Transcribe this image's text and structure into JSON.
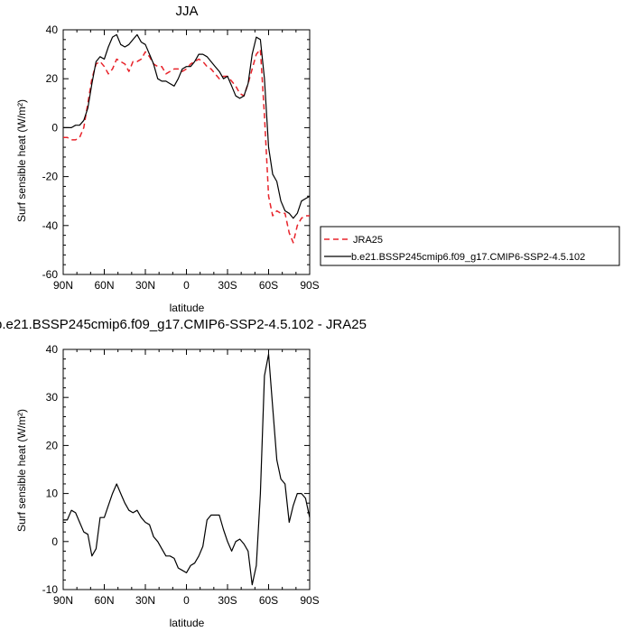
{
  "chart_data": [
    {
      "type": "line",
      "title": "JJA",
      "xlabel": "latitude",
      "ylabel": "Surf sensible heat (W/m²)",
      "xlim": [
        90,
        -90
      ],
      "ylim": [
        -60,
        40
      ],
      "xticks": [
        {
          "value": 90,
          "label": "90N"
        },
        {
          "value": 60,
          "label": "60N"
        },
        {
          "value": 30,
          "label": "30N"
        },
        {
          "value": 0,
          "label": "0"
        },
        {
          "value": -30,
          "label": "30S"
        },
        {
          "value": -60,
          "label": "60S"
        },
        {
          "value": -90,
          "label": "90S"
        }
      ],
      "yticks": [
        {
          "value": 40,
          "label": "40"
        },
        {
          "value": 20,
          "label": "20"
        },
        {
          "value": 0,
          "label": "0"
        },
        {
          "value": -20,
          "label": "-20"
        },
        {
          "value": -40,
          "label": "-40"
        },
        {
          "value": -60,
          "label": "-60"
        }
      ],
      "grid": false,
      "legend_position": "right",
      "series": [
        {
          "name": "JRA25",
          "color": "#e8232a",
          "dash": "dashed",
          "x": [
            90,
            87,
            84,
            81,
            78,
            75,
            72,
            69,
            66,
            63,
            60,
            57,
            54,
            51,
            48,
            45,
            42,
            39,
            36,
            33,
            30,
            27,
            24,
            21,
            18,
            15,
            12,
            9,
            6,
            3,
            0,
            -3,
            -6,
            -9,
            -12,
            -15,
            -18,
            -21,
            -24,
            -27,
            -30,
            -33,
            -36,
            -39,
            -42,
            -45,
            -48,
            -51,
            -54,
            -57,
            -60,
            -63,
            -66,
            -69,
            -72,
            -75,
            -78,
            -81,
            -84,
            -87,
            -90
          ],
          "y": [
            -4,
            -4,
            -5,
            -5,
            -4,
            0,
            10,
            20,
            26,
            27,
            25,
            22,
            24,
            28,
            27,
            26,
            23,
            27,
            27,
            28,
            31,
            29,
            26,
            25,
            25,
            22,
            23,
            24,
            24,
            23,
            24,
            26,
            27,
            28,
            27,
            25,
            24,
            22,
            20,
            21,
            21,
            19,
            17,
            14,
            13,
            18,
            24,
            30,
            32,
            5,
            -28,
            -36,
            -34,
            -35,
            -35,
            -43,
            -47,
            -40,
            -37,
            -36,
            -36
          ],
          "line": "dashed"
        },
        {
          "name": "b.e21.BSSP245cmip6.f09_g17.CMIP6-SSP2-4.5.102",
          "color": "#000000",
          "x": [
            90,
            87,
            84,
            81,
            78,
            75,
            72,
            69,
            66,
            63,
            60,
            57,
            54,
            51,
            48,
            45,
            42,
            39,
            36,
            33,
            30,
            27,
            24,
            21,
            18,
            15,
            12,
            9,
            6,
            3,
            0,
            -3,
            -6,
            -9,
            -12,
            -15,
            -18,
            -21,
            -24,
            -27,
            -30,
            -33,
            -36,
            -39,
            -42,
            -45,
            -48,
            -51,
            -54,
            -57,
            -60,
            -63,
            -66,
            -69,
            -72,
            -75,
            -78,
            -81,
            -84,
            -87,
            -90
          ],
          "y": [
            0,
            0,
            0,
            1,
            1,
            3,
            8,
            18,
            27,
            29,
            28,
            33,
            37,
            38,
            34,
            33,
            34,
            36,
            38,
            35,
            34,
            30,
            26,
            20,
            19,
            19,
            18,
            17,
            20,
            24,
            25,
            25,
            27,
            30,
            30,
            29,
            27,
            25,
            23,
            20,
            21,
            17,
            13,
            12,
            13,
            18,
            30,
            37,
            36,
            20,
            -8,
            -19,
            -22,
            -30,
            -34,
            -35,
            -37,
            -35,
            -30,
            -29,
            -28
          ],
          "line": "solid"
        }
      ]
    },
    {
      "type": "line",
      "title": "b.e21.BSSP245cmip6.f09_g17.CMIP6-SSP2-4.5.102 - JRA25",
      "xlabel": "latitude",
      "ylabel": "Surf sensible heat (W/m²)",
      "xlim": [
        90,
        -90
      ],
      "ylim": [
        -10,
        40
      ],
      "xticks": [
        {
          "value": 90,
          "label": "90N"
        },
        {
          "value": 60,
          "label": "60N"
        },
        {
          "value": 30,
          "label": "30N"
        },
        {
          "value": 0,
          "label": "0"
        },
        {
          "value": -30,
          "label": "30S"
        },
        {
          "value": -60,
          "label": "60S"
        },
        {
          "value": -90,
          "label": "90S"
        }
      ],
      "yticks": [
        {
          "value": 40,
          "label": "40"
        },
        {
          "value": 30,
          "label": "30"
        },
        {
          "value": 20,
          "label": "20"
        },
        {
          "value": 10,
          "label": "10"
        },
        {
          "value": 0,
          "label": "0"
        },
        {
          "value": -10,
          "label": "-10"
        }
      ],
      "grid": false,
      "series": [
        {
          "color": "#000000",
          "x": [
            90,
            87,
            84,
            81,
            78,
            75,
            72,
            69,
            66,
            63,
            60,
            57,
            54,
            51,
            48,
            45,
            42,
            39,
            36,
            33,
            30,
            27,
            24,
            21,
            18,
            15,
            12,
            9,
            6,
            3,
            0,
            -3,
            -6,
            -9,
            -12,
            -15,
            -18,
            -21,
            -24,
            -27,
            -30,
            -33,
            -36,
            -39,
            -42,
            -45,
            -48,
            -51,
            -54,
            -57,
            -60,
            -63,
            -66,
            -69,
            -72,
            -75,
            -78,
            -81,
            -84,
            -87,
            -90
          ],
          "y": [
            4.5,
            4.5,
            6.5,
            6,
            4,
            2,
            1.5,
            -3,
            -1.5,
            5,
            5,
            7.5,
            10,
            12,
            10,
            8,
            6.5,
            6,
            6.5,
            5,
            4,
            3.5,
            1,
            0,
            -1.5,
            -3,
            -3,
            -3.5,
            -5.5,
            -6,
            -6.5,
            -5,
            -4.5,
            -3,
            -1,
            4.5,
            5.5,
            5.5,
            5.5,
            2.5,
            0,
            -2,
            0,
            0.5,
            -0.5,
            -2,
            -9,
            -5,
            10,
            34.5,
            39,
            28,
            17,
            13,
            12,
            4,
            7.5,
            10,
            10,
            9,
            5
          ],
          "line": "solid"
        }
      ]
    }
  ]
}
